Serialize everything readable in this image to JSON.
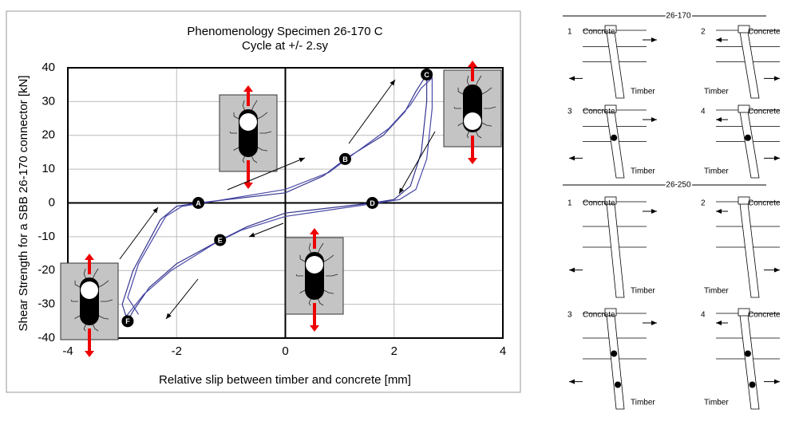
{
  "chart_data": {
    "type": "line",
    "title": "Phenomenology Specimen 26-170 C",
    "subtitle": "Cycle at +/- 2.sy",
    "x_label": "Relative slip between timber and concrete [mm]",
    "y_label": "Shear Strength for a SBB 26-170 connector [kN]",
    "xlim": [
      -4,
      4
    ],
    "xticks": [
      -4,
      -2,
      0,
      2,
      4
    ],
    "ylim": [
      -40,
      40
    ],
    "yticks": [
      -40,
      -30,
      -20,
      -10,
      0,
      10,
      20,
      30,
      40
    ],
    "grid": true,
    "series": [
      {
        "color": "#35358f",
        "x": [
          -2.9,
          -3.0,
          -2.8,
          -2.3,
          -2.0,
          -1.6,
          0,
          0.7,
          1.1,
          1.8,
          2.2,
          2.4,
          2.6,
          2.6,
          2.5,
          2.3,
          2.0,
          1.6,
          0,
          -0.7,
          -1.2,
          -2.0,
          -2.5,
          -2.8,
          -2.9
        ],
        "y": [
          -35,
          -30,
          -20,
          -5,
          -1,
          0,
          3,
          8,
          13,
          20,
          27,
          33,
          38,
          30,
          15,
          5,
          1,
          0,
          -3,
          -7,
          -11,
          -18,
          -25,
          -32,
          -35
        ]
      },
      {
        "color": "#4a4aa8",
        "x": [
          -2.7,
          -2.9,
          -2.7,
          -2.2,
          -1.9,
          -1.5,
          0,
          0.8,
          1.3,
          1.9,
          2.3,
          2.5,
          2.7,
          2.7,
          2.6,
          2.4,
          2.1,
          1.7,
          0,
          -0.8,
          -1.3,
          -2.1,
          -2.6,
          -2.9,
          -3.0
        ],
        "y": [
          -33,
          -28,
          -18,
          -4,
          -1,
          0,
          4,
          9,
          15,
          22,
          29,
          34,
          37,
          28,
          13,
          4,
          1,
          0,
          -4,
          -8,
          -12,
          -20,
          -27,
          -33,
          -35
        ]
      }
    ],
    "points": [
      {
        "label": "A",
        "x": -1.6,
        "y": 0
      },
      {
        "label": "B",
        "x": 1.1,
        "y": 13
      },
      {
        "label": "C",
        "x": 2.6,
        "y": 38
      },
      {
        "label": "D",
        "x": 1.6,
        "y": 0
      },
      {
        "label": "E",
        "x": -1.2,
        "y": -11
      },
      {
        "label": "F",
        "x": -2.9,
        "y": -35
      }
    ]
  },
  "diagram": {
    "sections": [
      {
        "title": "26-170",
        "panels": [
          {
            "number": "1",
            "concrete": "Concrete",
            "timber": "Timber"
          },
          {
            "number": "2",
            "concrete": "Concrete",
            "timber": "Timber"
          },
          {
            "number": "3",
            "concrete": "Concrete",
            "timber": "Timber"
          },
          {
            "number": "4",
            "concrete": "Concrete",
            "timber": "Timber"
          }
        ]
      },
      {
        "title": "26-250",
        "panels": [
          {
            "number": "1",
            "concrete": "Concrete",
            "timber": "Timber"
          },
          {
            "number": "2",
            "concrete": "Concrete",
            "timber": "Timber"
          },
          {
            "number": "3",
            "concrete": "Concrete",
            "timber": "Timber"
          },
          {
            "number": "4",
            "concrete": "Concrete",
            "timber": "Timber"
          }
        ]
      }
    ]
  }
}
